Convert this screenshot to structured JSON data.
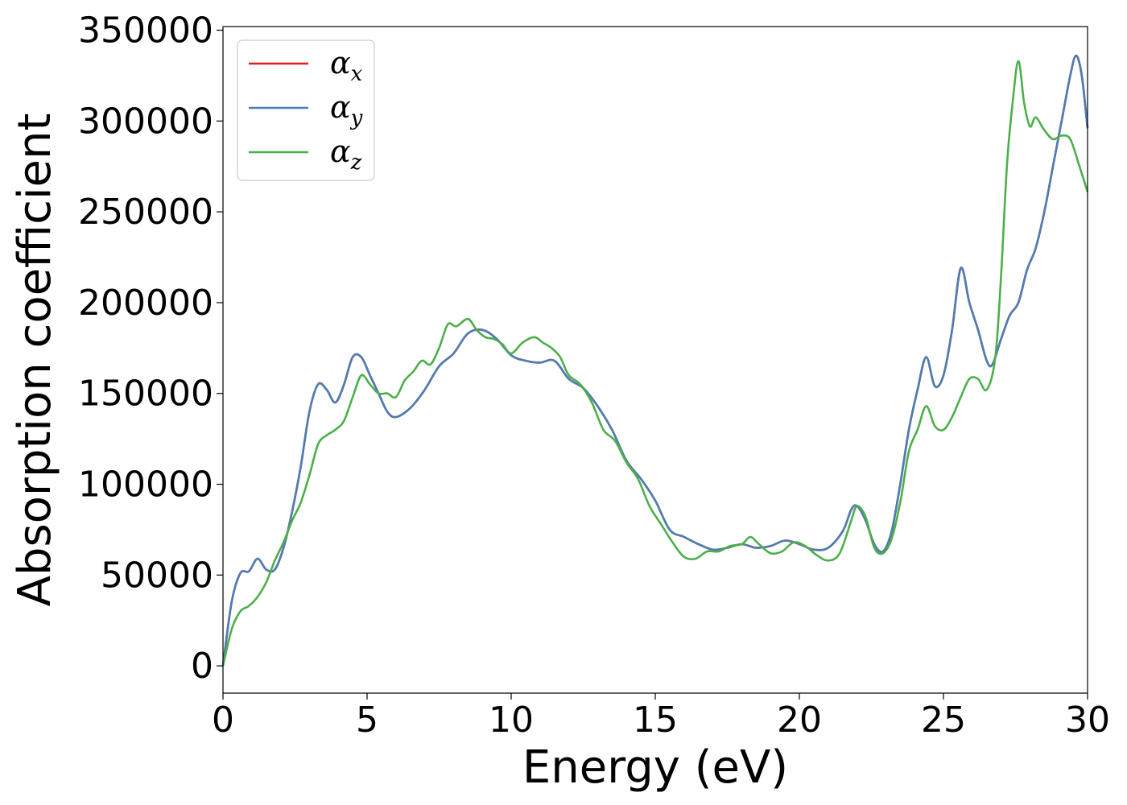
{
  "chart_data": {
    "type": "line",
    "xlabel": "Energy (eV)",
    "ylabel": "Absorption coefficient",
    "xlim": [
      0,
      30
    ],
    "ylim": [
      -15000,
      352000
    ],
    "xticks": [
      0,
      5,
      10,
      15,
      20,
      25,
      30
    ],
    "yticks": [
      0,
      50000,
      100000,
      150000,
      200000,
      250000,
      300000,
      350000
    ],
    "grid": false,
    "legend_position": "top-left",
    "series": [
      {
        "name": "α_x",
        "label_main": "α",
        "label_sub": "x",
        "color": "#e41a1c",
        "x": [
          0,
          0.3,
          0.6,
          0.9,
          1.2,
          1.5,
          1.8,
          2.1,
          2.4,
          2.7,
          3.0,
          3.3,
          3.6,
          3.9,
          4.2,
          4.5,
          4.8,
          5.1,
          5.4,
          5.7,
          6.0,
          6.5,
          7.0,
          7.5,
          8.0,
          8.5,
          9.0,
          9.5,
          10.0,
          10.5,
          11.0,
          11.5,
          12.0,
          12.5,
          13.0,
          13.5,
          14.0,
          14.5,
          15.0,
          15.5,
          16.0,
          16.5,
          17.0,
          17.5,
          18.0,
          18.5,
          19.0,
          19.5,
          20.0,
          20.5,
          21.0,
          21.5,
          21.8,
          22.0,
          22.3,
          22.6,
          22.9,
          23.2,
          23.5,
          23.8,
          24.1,
          24.4,
          24.7,
          25.0,
          25.3,
          25.6,
          25.9,
          26.2,
          26.5,
          26.7,
          27.0,
          27.3,
          27.6,
          27.9,
          28.2,
          28.5,
          28.8,
          29.1,
          29.4,
          29.6,
          29.8,
          30.0
        ],
        "y": [
          0,
          35000,
          51000,
          52000,
          59000,
          53000,
          53000,
          65000,
          85000,
          110000,
          140000,
          155000,
          152000,
          145000,
          155000,
          170000,
          170000,
          160000,
          150000,
          140000,
          137000,
          142000,
          152000,
          165000,
          172000,
          183000,
          185000,
          180000,
          171000,
          168000,
          167000,
          168000,
          158000,
          153000,
          143000,
          130000,
          113000,
          103000,
          91000,
          75000,
          71000,
          67000,
          64000,
          65000,
          67000,
          65000,
          66000,
          69000,
          67000,
          64000,
          65000,
          74000,
          86000,
          88000,
          80000,
          67000,
          63000,
          74000,
          100000,
          130000,
          152000,
          170000,
          154000,
          160000,
          185000,
          219000,
          200000,
          185000,
          168000,
          166000,
          180000,
          193000,
          200000,
          218000,
          230000,
          250000,
          275000,
          300000,
          325000,
          336000,
          325000,
          296000
        ]
      },
      {
        "name": "α_y",
        "label_main": "α",
        "label_sub": "y",
        "color": "#4a7eb5",
        "x": [
          0,
          0.3,
          0.6,
          0.9,
          1.2,
          1.5,
          1.8,
          2.1,
          2.4,
          2.7,
          3.0,
          3.3,
          3.6,
          3.9,
          4.2,
          4.5,
          4.8,
          5.1,
          5.4,
          5.7,
          6.0,
          6.5,
          7.0,
          7.5,
          8.0,
          8.5,
          9.0,
          9.5,
          10.0,
          10.5,
          11.0,
          11.5,
          12.0,
          12.5,
          13.0,
          13.5,
          14.0,
          14.5,
          15.0,
          15.5,
          16.0,
          16.5,
          17.0,
          17.5,
          18.0,
          18.5,
          19.0,
          19.5,
          20.0,
          20.5,
          21.0,
          21.5,
          21.8,
          22.0,
          22.3,
          22.6,
          22.9,
          23.2,
          23.5,
          23.8,
          24.1,
          24.4,
          24.7,
          25.0,
          25.3,
          25.6,
          25.9,
          26.2,
          26.5,
          26.7,
          27.0,
          27.3,
          27.6,
          27.9,
          28.2,
          28.5,
          28.8,
          29.1,
          29.4,
          29.6,
          29.8,
          30.0
        ],
        "y": [
          0,
          35000,
          51000,
          52000,
          59000,
          53000,
          53000,
          65000,
          85000,
          110000,
          140000,
          155000,
          152000,
          145000,
          155000,
          170000,
          170000,
          160000,
          150000,
          140000,
          137000,
          142000,
          152000,
          165000,
          172000,
          183000,
          185000,
          180000,
          171000,
          168000,
          167000,
          168000,
          158000,
          153000,
          143000,
          130000,
          113000,
          103000,
          91000,
          75000,
          71000,
          67000,
          64000,
          65000,
          67000,
          65000,
          66000,
          69000,
          67000,
          64000,
          65000,
          74000,
          86000,
          88000,
          80000,
          67000,
          63000,
          74000,
          100000,
          130000,
          152000,
          170000,
          154000,
          160000,
          185000,
          219000,
          200000,
          185000,
          168000,
          166000,
          180000,
          193000,
          200000,
          218000,
          230000,
          250000,
          275000,
          300000,
          325000,
          336000,
          325000,
          296000
        ]
      },
      {
        "name": "α_z",
        "label_main": "α",
        "label_sub": "z",
        "color": "#4daf4a",
        "x": [
          0,
          0.3,
          0.6,
          0.9,
          1.2,
          1.5,
          1.8,
          2.1,
          2.4,
          2.7,
          3.0,
          3.3,
          3.6,
          3.9,
          4.2,
          4.5,
          4.8,
          5.1,
          5.4,
          5.7,
          6.0,
          6.3,
          6.6,
          6.9,
          7.2,
          7.5,
          7.8,
          8.1,
          8.5,
          8.8,
          9.1,
          9.4,
          9.7,
          10.0,
          10.4,
          10.8,
          11.1,
          11.4,
          11.7,
          12.0,
          12.4,
          12.8,
          13.2,
          13.6,
          14.0,
          14.4,
          14.8,
          15.2,
          15.6,
          16.0,
          16.4,
          16.8,
          17.2,
          17.6,
          18.0,
          18.3,
          18.6,
          19.0,
          19.4,
          19.8,
          20.2,
          20.6,
          21.0,
          21.4,
          21.8,
          22.0,
          22.3,
          22.6,
          22.9,
          23.2,
          23.5,
          23.8,
          24.1,
          24.4,
          24.7,
          25.0,
          25.3,
          25.6,
          25.9,
          26.2,
          26.5,
          26.8,
          27.0,
          27.2,
          27.4,
          27.6,
          27.8,
          28.0,
          28.2,
          28.5,
          28.8,
          29.1,
          29.4,
          29.7,
          30.0
        ],
        "y": [
          0,
          20000,
          30000,
          33000,
          38000,
          46000,
          58000,
          68000,
          80000,
          90000,
          105000,
          122000,
          127000,
          130000,
          135000,
          148000,
          160000,
          155000,
          150000,
          150000,
          148000,
          157000,
          162000,
          168000,
          166000,
          175000,
          188000,
          187000,
          191000,
          185000,
          181000,
          180000,
          177000,
          172000,
          178000,
          181000,
          178000,
          175000,
          170000,
          160000,
          155000,
          145000,
          130000,
          124000,
          112000,
          103000,
          88000,
          78000,
          68000,
          60000,
          59000,
          63000,
          63000,
          66000,
          67000,
          71000,
          67000,
          62000,
          63000,
          68000,
          66000,
          61000,
          58000,
          62000,
          80000,
          88000,
          82000,
          65000,
          62000,
          70000,
          90000,
          118000,
          130000,
          143000,
          132000,
          130000,
          137000,
          148000,
          158000,
          158000,
          152000,
          170000,
          215000,
          275000,
          310000,
          333000,
          310000,
          297000,
          302000,
          295000,
          290000,
          292000,
          290000,
          276000,
          261000
        ]
      }
    ]
  }
}
